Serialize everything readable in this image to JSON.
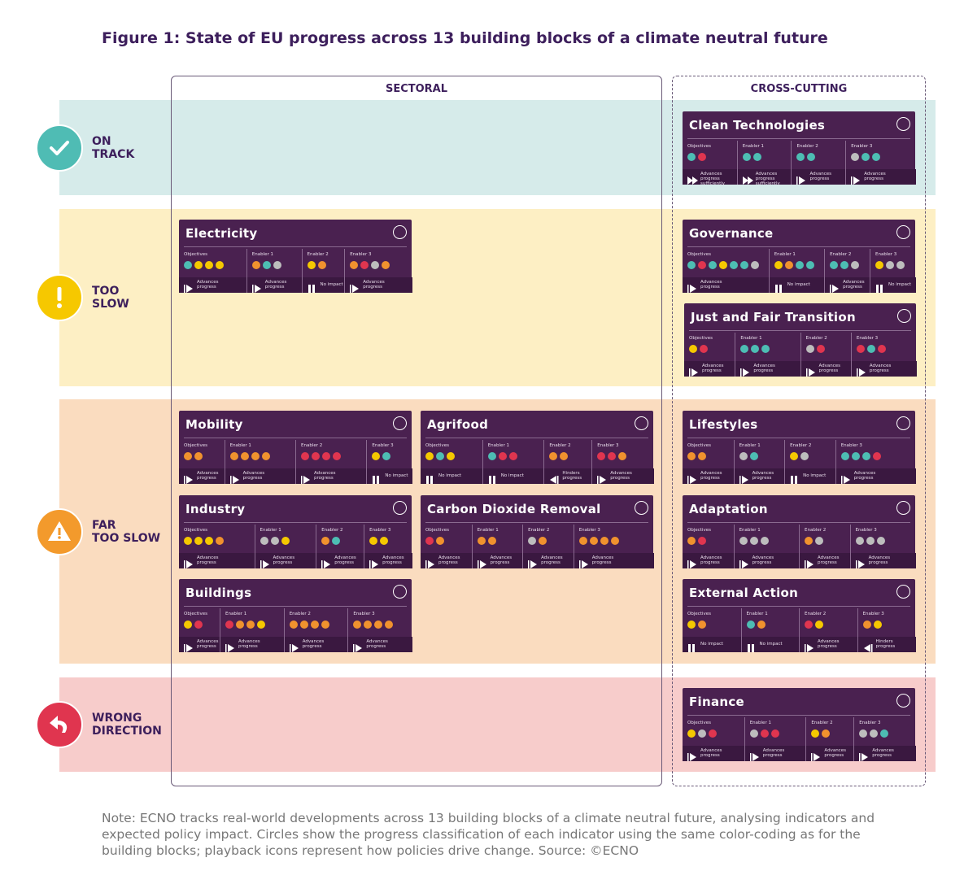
{
  "title": "Figure 1: State of EU progress across 13 building blocks of a climate neutral future",
  "columns": [
    "SECTORAL",
    "CROSS-CUTTING"
  ],
  "rows": [
    {
      "label": [
        "ON",
        "TRACK"
      ],
      "color": "#d6ebea",
      "icon_color": "#4fbcb4"
    },
    {
      "label": [
        "TOO",
        "SLOW"
      ],
      "color": "#fdefc4",
      "icon_color": "#f6c800"
    },
    {
      "label": [
        "FAR",
        "TOO SLOW"
      ],
      "color": "#fadcbf",
      "icon_color": "#f39a2c"
    },
    {
      "label": [
        "WRONG",
        "DIRECTION"
      ],
      "color": "#f7cccb",
      "icon_color": "#e0354f"
    }
  ],
  "blocks": [
    {
      "name": "Clean Technologies",
      "sections": [
        {
          "label": "Objectives",
          "dots": [
            "#4dbdb3",
            "#e0354f"
          ],
          "icon": "fast",
          "impact": "Advances progress sufficiently"
        },
        {
          "label": "Enabler 1",
          "dots": [
            "#4dbdb3",
            "#4dbdb3"
          ],
          "icon": "fast",
          "impact": "Advances progress sufficiently"
        },
        {
          "label": "Enabler 2",
          "dots": [
            "#4dbdb3",
            "#4dbdb3"
          ],
          "icon": "advance",
          "impact": "Advances progress"
        },
        {
          "label": "Enabler 3",
          "dots": [
            "#bdbdbd",
            "#4dbdb3",
            "#4dbdb3"
          ],
          "icon": "advance",
          "impact": "Advances progress"
        }
      ]
    },
    {
      "name": "Electricity",
      "sections": [
        {
          "label": "Objectives",
          "dots": [
            "#4dbdb3",
            "#f5c800",
            "#f5c800",
            "#f5c800"
          ],
          "icon": "advance",
          "impact": "Advances progress"
        },
        {
          "label": "Enabler 1",
          "dots": [
            "#f0922e",
            "#4dbdb3",
            "#bdbdbd"
          ],
          "icon": "advance",
          "impact": "Advances progress"
        },
        {
          "label": "Enabler 2",
          "dots": [
            "#f5c800",
            "#f0922e"
          ],
          "icon": "pause",
          "impact": "No impact"
        },
        {
          "label": "Enabler 3",
          "dots": [
            "#f0922e",
            "#e0354f",
            "#bdbdbd",
            "#f0922e"
          ],
          "icon": "advance",
          "impact": "Advances progress"
        }
      ]
    },
    {
      "name": "Governance",
      "sections": [
        {
          "label": "Objectives",
          "dots": [
            "#4dbdb3",
            "#e0354f",
            "#4dbdb3",
            "#f5c800",
            "#4dbdb3",
            "#4dbdb3",
            "#bdbdbd"
          ],
          "icon": "advance",
          "impact": "Advances progress"
        },
        {
          "label": "Enabler 1",
          "dots": [
            "#f5c800",
            "#f0922e",
            "#4dbdb3",
            "#4dbdb3"
          ],
          "icon": "pause",
          "impact": "No impact"
        },
        {
          "label": "Enabler 2",
          "dots": [
            "#4dbdb3",
            "#4dbdb3",
            "#bdbdbd"
          ],
          "icon": "advance",
          "impact": "Advances progress"
        },
        {
          "label": "Enabler 3",
          "dots": [
            "#f5c800",
            "#bdbdbd",
            "#bdbdbd"
          ],
          "icon": "pause",
          "impact": "No impact"
        }
      ]
    },
    {
      "name": "Just and Fair Transition",
      "sections": [
        {
          "label": "Objectives",
          "dots": [
            "#f5c800",
            "#e0354f"
          ],
          "icon": "advance",
          "impact": "Advances progress"
        },
        {
          "label": "Enabler 1",
          "dots": [
            "#4dbdb3",
            "#4dbdb3",
            "#4dbdb3"
          ],
          "icon": "advance",
          "impact": "Advances progress"
        },
        {
          "label": "Enabler 2",
          "dots": [
            "#bdbdbd",
            "#e0354f"
          ],
          "icon": "advance",
          "impact": "Advances progress"
        },
        {
          "label": "Enabler 3",
          "dots": [
            "#e0354f",
            "#4dbdb3",
            "#e0354f"
          ],
          "icon": "advance",
          "impact": "Advances progress"
        }
      ]
    },
    {
      "name": "Mobility",
      "sections": [
        {
          "label": "Objectives",
          "dots": [
            "#f0922e",
            "#f0922e"
          ],
          "icon": "advance",
          "impact": "Advances progress"
        },
        {
          "label": "Enabler 1",
          "dots": [
            "#f0922e",
            "#f0922e",
            "#f0922e",
            "#f0922e"
          ],
          "icon": "advance",
          "impact": "Advances progress"
        },
        {
          "label": "Enabler 2",
          "dots": [
            "#e0354f",
            "#e0354f",
            "#e0354f",
            "#e0354f"
          ],
          "icon": "advance",
          "impact": "Advances progress"
        },
        {
          "label": "Enabler 3",
          "dots": [
            "#f5c800",
            "#4dbdb3"
          ],
          "icon": "pause",
          "impact": "No impact"
        }
      ]
    },
    {
      "name": "Agrifood",
      "sections": [
        {
          "label": "Objectives",
          "dots": [
            "#f5c800",
            "#4dbdb3",
            "#f5c800"
          ],
          "icon": "pause",
          "impact": "No impact"
        },
        {
          "label": "Enabler 1",
          "dots": [
            "#4dbdb3",
            "#e0354f",
            "#e0354f"
          ],
          "icon": "pause",
          "impact": "No impact"
        },
        {
          "label": "Enabler 2",
          "dots": [
            "#f0922e",
            "#f0922e"
          ],
          "icon": "hinder",
          "impact": "Hinders progress"
        },
        {
          "label": "Enabler 3",
          "dots": [
            "#e0354f",
            "#e0354f",
            "#f0922e"
          ],
          "icon": "advance",
          "impact": "Advances progress"
        }
      ]
    },
    {
      "name": "Lifestyles",
      "sections": [
        {
          "label": "Objectives",
          "dots": [
            "#f0922e",
            "#f0922e"
          ],
          "icon": "advance",
          "impact": "Advances progress"
        },
        {
          "label": "Enabler 1",
          "dots": [
            "#bdbdbd",
            "#4dbdb3"
          ],
          "icon": "advance",
          "impact": "Advances progress"
        },
        {
          "label": "Enabler 2",
          "dots": [
            "#f5c800",
            "#bdbdbd"
          ],
          "icon": "pause",
          "impact": "No impact"
        },
        {
          "label": "Enabler 3",
          "dots": [
            "#4dbdb3",
            "#4dbdb3",
            "#4dbdb3",
            "#e0354f"
          ],
          "icon": "advance",
          "impact": "Advances progress"
        }
      ]
    },
    {
      "name": "Industry",
      "sections": [
        {
          "label": "Objectives",
          "dots": [
            "#f5c800",
            "#f5c800",
            "#f5c800",
            "#f0922e"
          ],
          "icon": "advance",
          "impact": "Advances progress"
        },
        {
          "label": "Enabler 1",
          "dots": [
            "#bdbdbd",
            "#bdbdbd",
            "#f5c800"
          ],
          "icon": "advance",
          "impact": "Advances progress"
        },
        {
          "label": "Enabler 2",
          "dots": [
            "#f0922e",
            "#4dbdb3"
          ],
          "icon": "advance",
          "impact": "Advances progress"
        },
        {
          "label": "Enabler 3",
          "dots": [
            "#f5c800",
            "#f5c800"
          ],
          "icon": "advance",
          "impact": "Advances progress"
        }
      ]
    },
    {
      "name": "Carbon Dioxide Removal",
      "sections": [
        {
          "label": "Objectives",
          "dots": [
            "#e0354f",
            "#f0922e"
          ],
          "icon": "advance",
          "impact": "Advances progress"
        },
        {
          "label": "Enabler 1",
          "dots": [
            "#f0922e",
            "#f0922e"
          ],
          "icon": "advance",
          "impact": "Advances progress"
        },
        {
          "label": "Enabler 2",
          "dots": [
            "#bdbdbd",
            "#f0922e"
          ],
          "icon": "advance",
          "impact": "Advances progress"
        },
        {
          "label": "Enabler 3",
          "dots": [
            "#f0922e",
            "#f0922e",
            "#f0922e",
            "#f0922e"
          ],
          "icon": "advance",
          "impact": "Advances progress"
        }
      ]
    },
    {
      "name": "Adaptation",
      "sections": [
        {
          "label": "Objectives",
          "dots": [
            "#f0922e",
            "#e0354f"
          ],
          "icon": "advance",
          "impact": "Advances progress"
        },
        {
          "label": "Enabler 1",
          "dots": [
            "#bdbdbd",
            "#bdbdbd",
            "#bdbdbd"
          ],
          "icon": "advance",
          "impact": "Advances progress"
        },
        {
          "label": "Enabler 2",
          "dots": [
            "#f0922e",
            "#bdbdbd"
          ],
          "icon": "advance",
          "impact": "Advances progress"
        },
        {
          "label": "Enabler 3",
          "dots": [
            "#bdbdbd",
            "#bdbdbd",
            "#bdbdbd"
          ],
          "icon": "advance",
          "impact": "Advances progress"
        }
      ]
    },
    {
      "name": "Buildings",
      "sections": [
        {
          "label": "Objectives",
          "dots": [
            "#f5c800",
            "#e0354f"
          ],
          "icon": "advance",
          "impact": "Advances progress"
        },
        {
          "label": "Enabler 1",
          "dots": [
            "#e0354f",
            "#f0922e",
            "#f0922e",
            "#f5c800"
          ],
          "icon": "advance",
          "impact": "Advances progress"
        },
        {
          "label": "Enabler 2",
          "dots": [
            "#f0922e",
            "#f0922e",
            "#f0922e",
            "#f0922e"
          ],
          "icon": "advance",
          "impact": "Advances progress"
        },
        {
          "label": "Enabler 3",
          "dots": [
            "#f0922e",
            "#f0922e",
            "#f0922e",
            "#f0922e"
          ],
          "icon": "advance",
          "impact": "Advances progress"
        }
      ]
    },
    {
      "name": "External Action",
      "sections": [
        {
          "label": "Objectives",
          "dots": [
            "#f5c800",
            "#f0922e"
          ],
          "icon": "pause",
          "impact": "No impact"
        },
        {
          "label": "Enabler 1",
          "dots": [
            "#4dbdb3",
            "#f0922e"
          ],
          "icon": "pause",
          "impact": "No impact"
        },
        {
          "label": "Enabler 2",
          "dots": [
            "#e0354f",
            "#f5c800"
          ],
          "icon": "advance",
          "impact": "Advances progress"
        },
        {
          "label": "Enabler 3",
          "dots": [
            "#f0922e",
            "#f5c800"
          ],
          "icon": "hinder",
          "impact": "Hinders progress"
        }
      ]
    },
    {
      "name": "Finance",
      "sections": [
        {
          "label": "Objectives",
          "dots": [
            "#f5c800",
            "#bdbdbd",
            "#e0354f"
          ],
          "icon": "advance",
          "impact": "Advances progress"
        },
        {
          "label": "Enabler 1",
          "dots": [
            "#bdbdbd",
            "#e0354f",
            "#e0354f"
          ],
          "icon": "advance",
          "impact": "Advances progress"
        },
        {
          "label": "Enabler 2",
          "dots": [
            "#f5c800",
            "#f0922e"
          ],
          "icon": "advance",
          "impact": "Advances progress"
        },
        {
          "label": "Enabler 3",
          "dots": [
            "#bdbdbd",
            "#bdbdbd",
            "#4dbdb3"
          ],
          "icon": "advance",
          "impact": "Advances progress"
        }
      ]
    }
  ],
  "note": "Note: ECNO tracks real-world developments across 13 building blocks of a climate neutral future, analysing indicators and expected policy impact. Circles show the progress classification of each indicator using the same color-coding as for the building blocks; playback icons represent how policies drive change. Source: ©ECNO"
}
